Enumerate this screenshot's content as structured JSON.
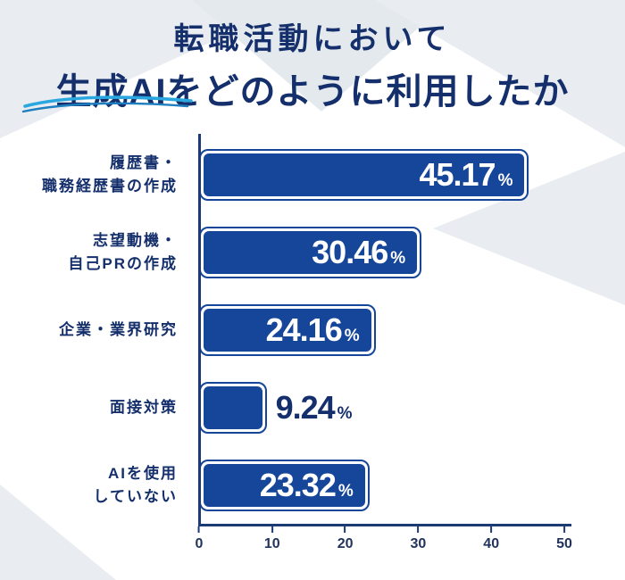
{
  "title": {
    "line1": "転職活動において",
    "line2": "生成AIをどのように利用したか"
  },
  "chart_data": {
    "type": "bar",
    "orientation": "horizontal",
    "title": "転職活動において生成AIをどのように利用したか",
    "categories": [
      [
        "履歴書・",
        "職務経歴書の作成"
      ],
      [
        "志望動機・",
        "自己PRの作成"
      ],
      [
        "企業・業界研究"
      ],
      [
        "面接対策"
      ],
      [
        "AIを使用",
        "していない"
      ]
    ],
    "values": [
      45.17,
      30.46,
      24.16,
      9.24,
      23.32
    ],
    "value_labels": [
      "45.17",
      "30.46",
      "24.16",
      "9.24",
      "23.32"
    ],
    "value_suffix": "%",
    "xlim": [
      0,
      50
    ],
    "x_ticks": [
      "0",
      "10",
      "20",
      "30",
      "40",
      "50"
    ],
    "inside_label_min_value": 14,
    "grid": false,
    "legend": "none"
  },
  "colors": {
    "bar": "#16469a",
    "title": "#142f6b",
    "category_label": "#142f6b",
    "axis": "#1c3a74",
    "value_inside": "#ffffff",
    "value_outside": "#142f6b",
    "deco_gray": "#e9edf1",
    "swoosh_light": "#2aa7df",
    "swoosh_dark": "#1d7ec0"
  }
}
